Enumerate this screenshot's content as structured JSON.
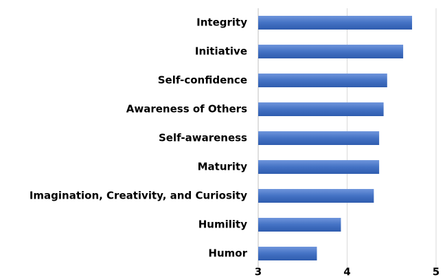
{
  "chart_data": {
    "type": "bar",
    "orientation": "horizontal",
    "categories": [
      "Integrity",
      "Initiative",
      "Self-confidence",
      "Awareness of Others",
      "Self-awareness",
      "Maturity",
      "Imagination, Creativity, and Curiosity",
      "Humility",
      "Humor"
    ],
    "values": [
      4.73,
      4.63,
      4.45,
      4.41,
      4.36,
      4.36,
      4.3,
      3.93,
      3.66
    ],
    "color": "#4472c4",
    "xlim": [
      3,
      5
    ],
    "xticks": [
      3,
      4,
      5
    ],
    "grid": true
  }
}
